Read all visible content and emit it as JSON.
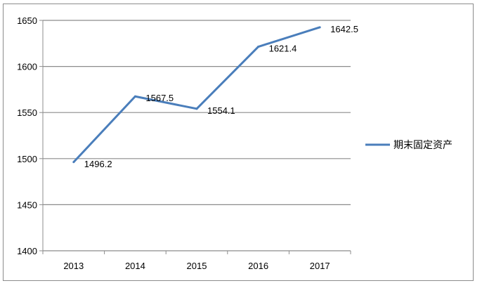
{
  "chart_data": {
    "type": "line",
    "title": "",
    "xlabel": "",
    "ylabel": "",
    "categories": [
      "2013",
      "2014",
      "2015",
      "2016",
      "2017"
    ],
    "series": [
      {
        "name": "期末固定资产",
        "values": [
          1496.2,
          1567.5,
          1554.1,
          1621.4,
          1642.5
        ],
        "data_labels": [
          "1496.2",
          "1567.5",
          "1554.1",
          "1621.4",
          "1642.5"
        ],
        "color": "#4a7ebb"
      }
    ],
    "ylim": [
      1400,
      1650
    ],
    "yticks": [
      "1400",
      "1450",
      "1500",
      "1550",
      "1600",
      "1650"
    ],
    "grid": true,
    "legend": "right"
  }
}
